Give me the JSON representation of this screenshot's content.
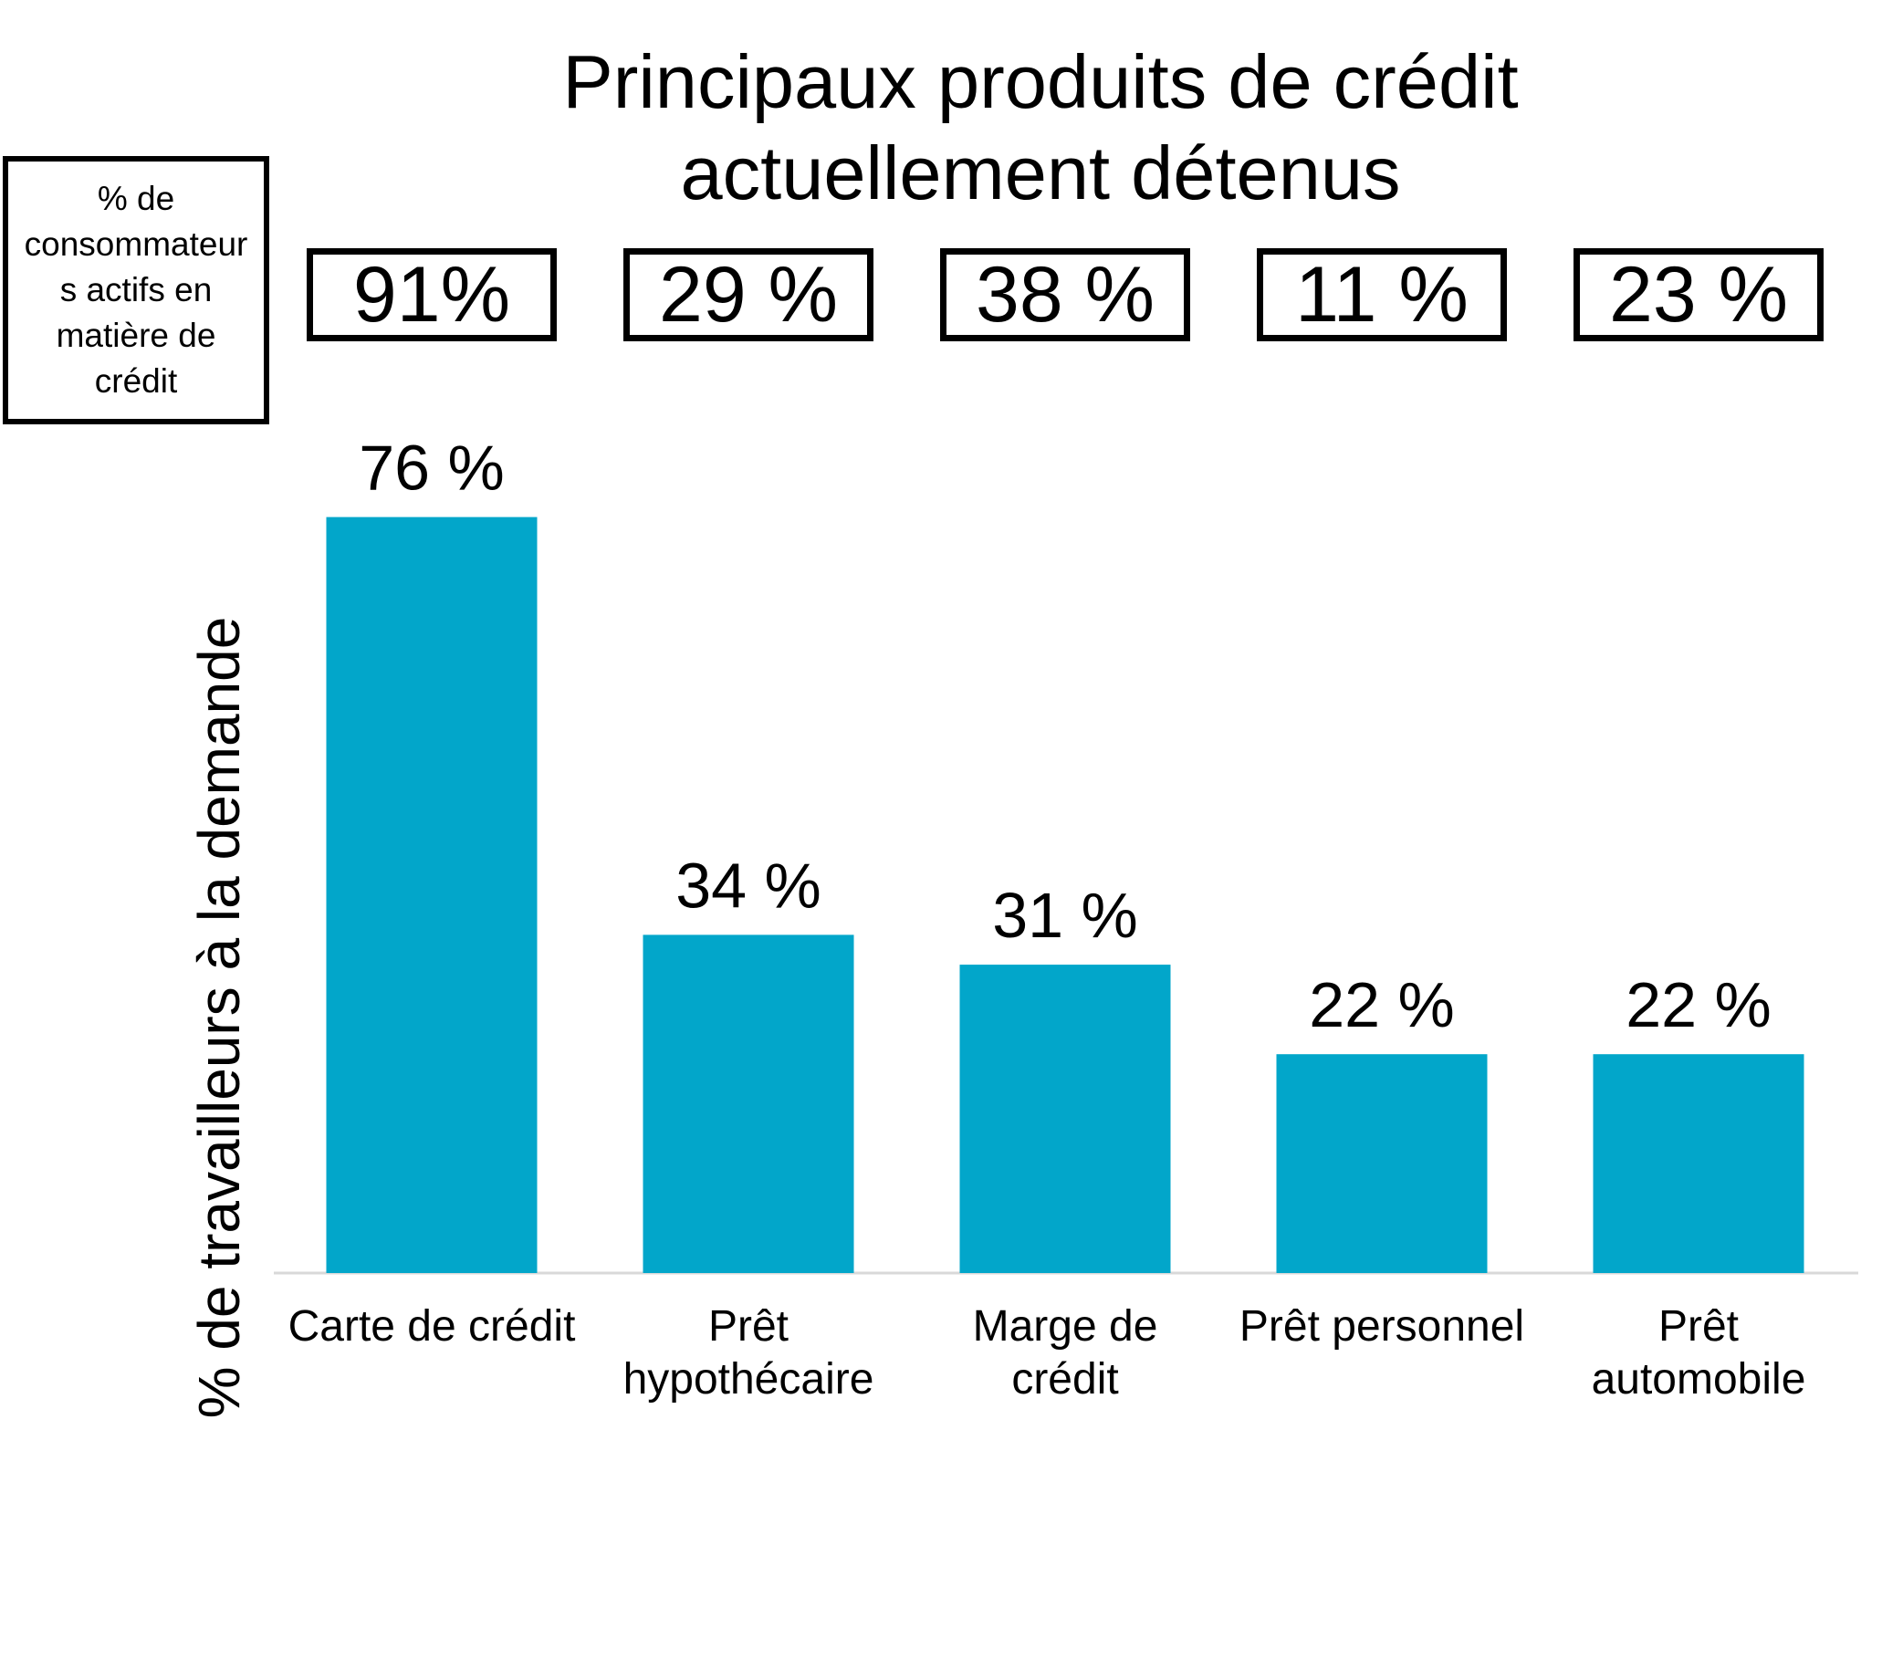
{
  "chart_data": {
    "type": "bar",
    "title": "Principaux produits de crédit actuellement détenus",
    "y_label": "% de travailleurs à la demande",
    "categories": [
      "Carte de crédit",
      "Prêt hypothécaire",
      "Marge de crédit",
      "Prêt personnel",
      "Prêt automobile"
    ],
    "values": [
      76,
      34,
      31,
      22,
      22
    ],
    "value_labels": [
      "76 %",
      "34 %",
      "31 %",
      "22 %",
      "22 %"
    ],
    "color": "#02a6ca",
    "benchmark": {
      "label": "% de consommateurs actifs en matière de crédit",
      "values": [
        91,
        29,
        38,
        11,
        23
      ],
      "value_labels": [
        "91%",
        "29 %",
        "38 %",
        "11 %",
        "23 %"
      ]
    }
  }
}
